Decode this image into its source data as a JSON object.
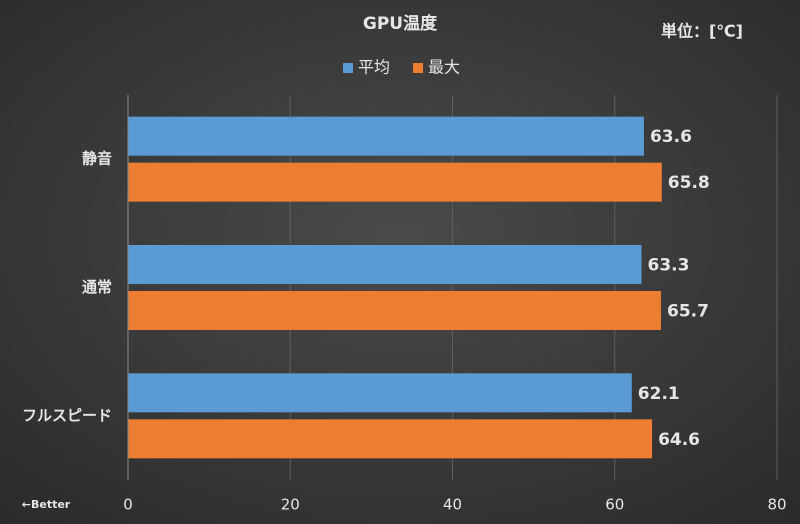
{
  "chart_data": {
    "type": "hbar",
    "title": "GPU温度",
    "unit_label": "単位：[℃]",
    "annotation": "←Better",
    "categories": [
      "静音",
      "通常",
      "フルスピード"
    ],
    "series": [
      {
        "name": "平均",
        "color": "#5b9bd5",
        "values": [
          63.6,
          63.3,
          62.1
        ]
      },
      {
        "name": "最大",
        "color": "#ed7d31",
        "values": [
          65.8,
          65.7,
          64.6
        ]
      }
    ],
    "xlim": [
      0,
      80
    ],
    "xticks": [
      0,
      20,
      40,
      60,
      80
    ],
    "grid": true,
    "legend": "top"
  }
}
